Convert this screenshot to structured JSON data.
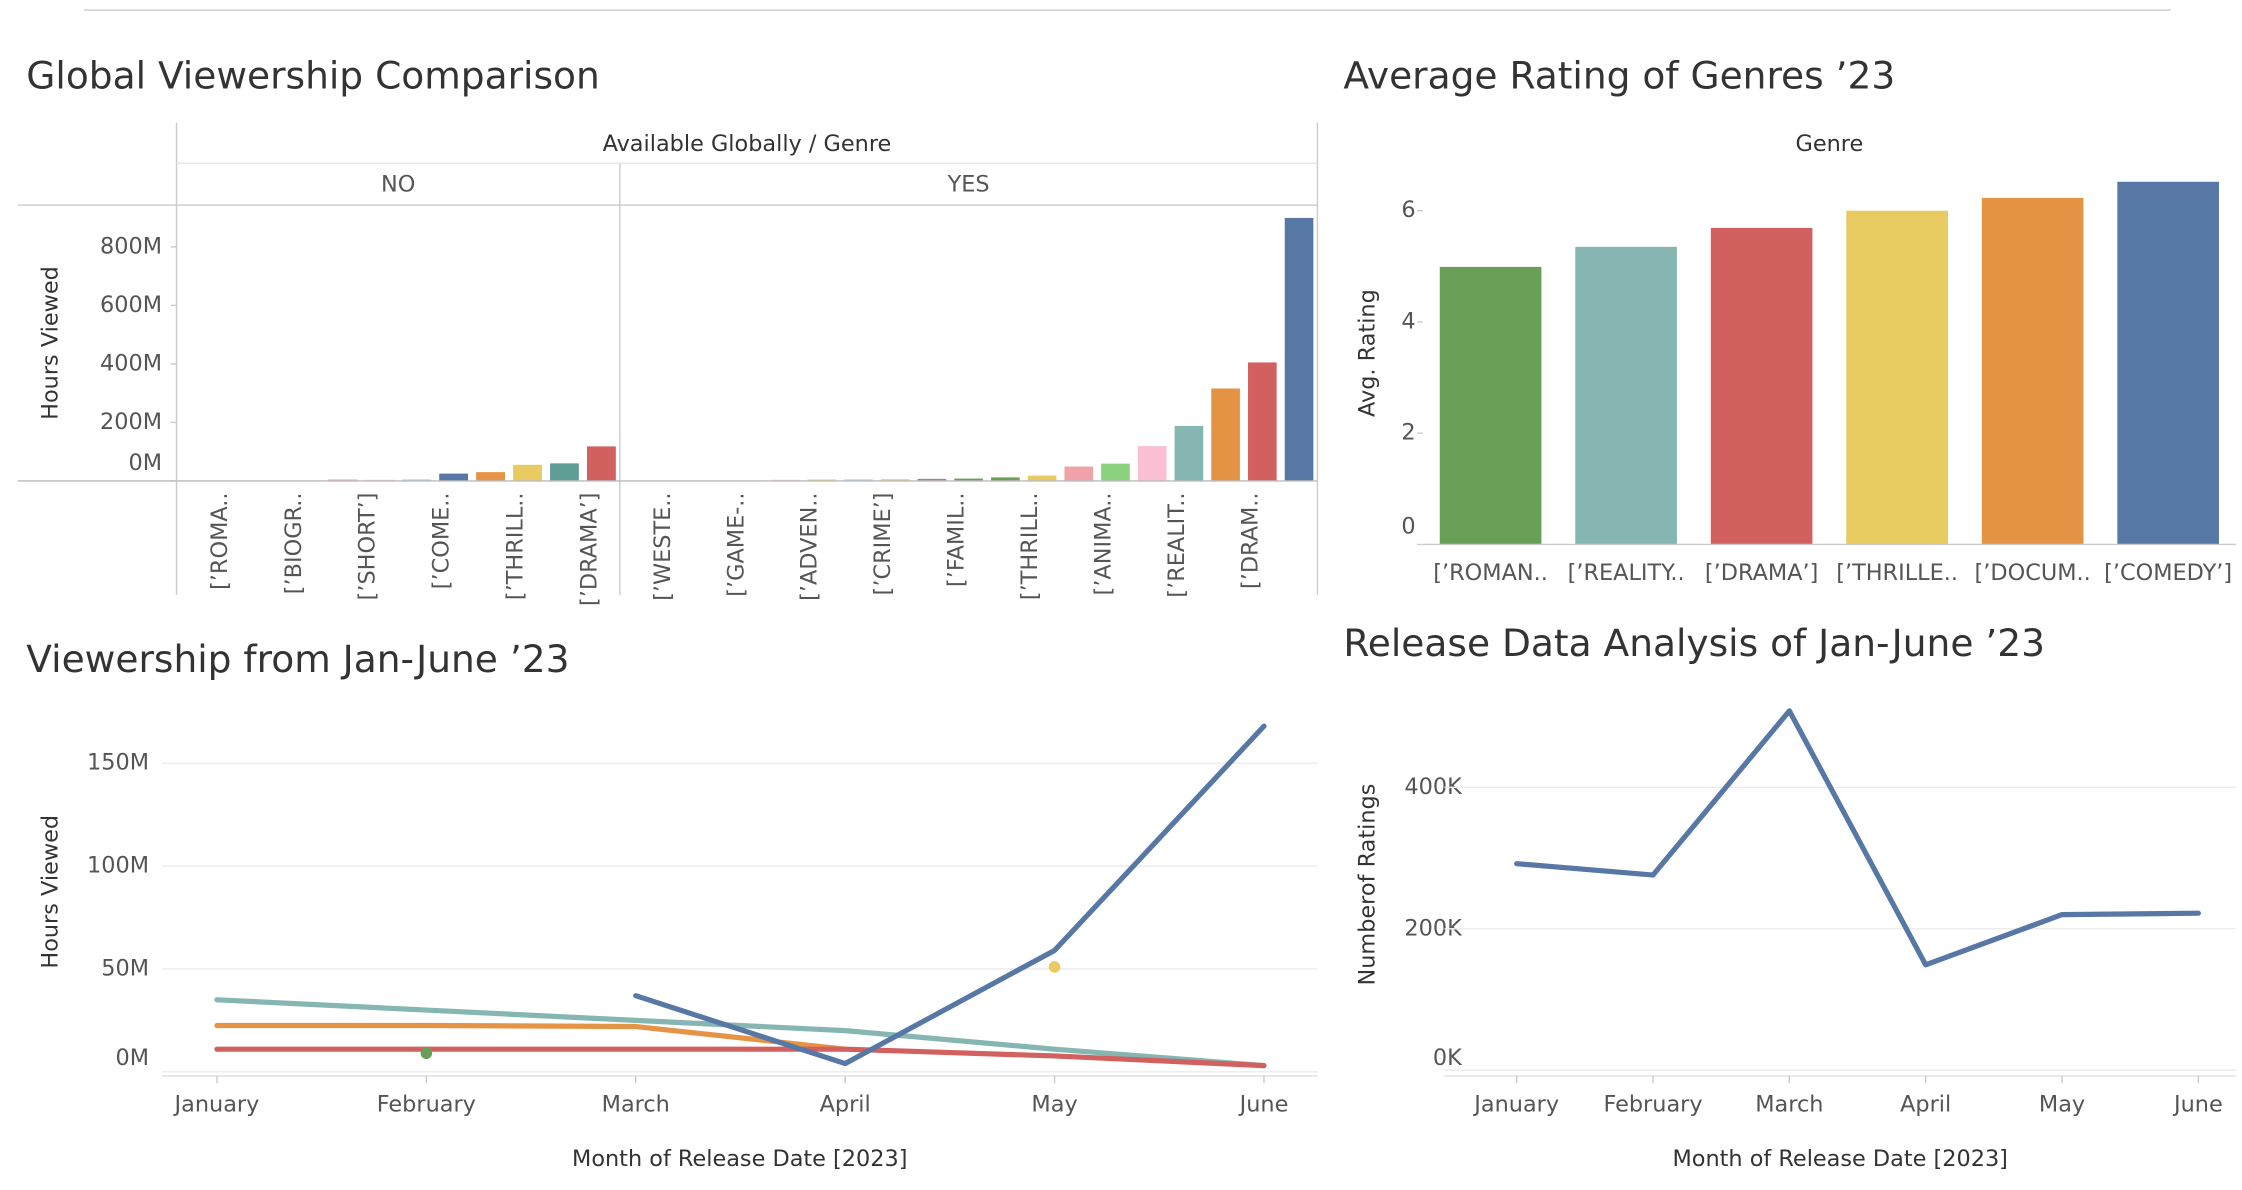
{
  "chart_data": [
    {
      "type": "faceted_bar",
      "title": "Global Viewership Comparison",
      "facet_title": "Available Globally / Genre",
      "ylabel": "Hours Viewed",
      "ylim": [
        0,
        943000000
      ],
      "yticks": [
        {
          "value": 0,
          "label": "0M"
        },
        {
          "value": 200000000,
          "label": "200M"
        },
        {
          "value": 400000000,
          "label": "400M"
        },
        {
          "value": 600000000,
          "label": "600M"
        },
        {
          "value": 800000000,
          "label": "800M"
        }
      ],
      "facets": [
        {
          "label": "NO",
          "categories": [
            null,
            "[’ROMA..",
            null,
            "[’BIOGR..",
            null,
            "[’SHORT’]",
            null,
            "[’COME..",
            null,
            "[’THRILL..",
            null,
            "[’DRAMA’]"
          ],
          "values": [
            0,
            0,
            0,
            0,
            5000000,
            4000000,
            5000000,
            25000000,
            30000000,
            55000000,
            60000000,
            118000000
          ],
          "colors": [
            "#b8b0ac",
            "#b8b0ac",
            "#b8b0ac",
            "#b8b0ac",
            "#f1a2a9",
            "#f4c6d9",
            "#a0cbe8",
            "#5778a4",
            "#e49444",
            "#e7ca60",
            "#5f9e95",
            "#d1605e"
          ]
        },
        {
          "label": "YES",
          "categories": [
            null,
            "[’WESTE..",
            null,
            "[’GAME-..",
            null,
            "[’ADVEN..",
            null,
            "[’CRIME’]",
            null,
            "[’FAMIL..",
            null,
            "[’THRILL..",
            null,
            "[’ANIMA..",
            null,
            "[’REALIT..",
            null,
            "[’DRAM..",
            null
          ],
          "values": [
            0,
            0,
            0,
            0,
            4000000,
            5000000,
            5000000,
            6000000,
            7000000,
            8000000,
            12000000,
            18000000,
            49000000,
            59000000,
            119000000,
            188000000,
            316000000,
            405000000,
            899000000
          ],
          "colors": [
            "#b8b0ac",
            "#b8b0ac",
            "#b8b0ac",
            "#b8b0ac",
            "#f4c6d9",
            "#f1ce63",
            "#a0cbe8",
            "#f1ce63",
            "#a87c9f",
            "#6a9f58",
            "#6a9f58",
            "#e7ca60",
            "#f1a2a9",
            "#8cd17d",
            "#fabfd2",
            "#85b6b2",
            "#e49444",
            "#d1605e",
            "#5778a4"
          ]
        }
      ]
    },
    {
      "type": "bar",
      "title": "Average Rating of Genres ’23",
      "xlabel": "Genre",
      "ylabel": "Avg. Rating",
      "categories": [
        "[’ROMAN..",
        "[’REALITY..",
        "[’DRAMA’]",
        "[’THRILLE..",
        "[’DOCUM..",
        "[’COMEDY’]"
      ],
      "values": [
        4.99,
        5.35,
        5.69,
        6.0,
        6.23,
        6.52
      ],
      "colors": [
        "#6a9f58",
        "#85b6b2",
        "#d1605e",
        "#e7ca60",
        "#e49444",
        "#5778a4"
      ],
      "ylim": [
        0,
        6.88
      ],
      "yticks": [
        0,
        2,
        4,
        6
      ],
      "grid": false
    },
    {
      "type": "line",
      "title": "Viewership from Jan-June ’23",
      "xlabel": "Month of Release Date [2023]",
      "ylabel": "Hours Viewed",
      "categories": [
        "January",
        "February",
        "March",
        "April",
        "May",
        "June"
      ],
      "series": [
        {
          "color": "#85b6b2",
          "values": [
            35000000,
            30000000,
            25000000,
            20000000,
            11000000,
            3000000
          ]
        },
        {
          "color": "#e49444",
          "values": [
            22500000,
            22500000,
            22000000,
            11000000,
            null,
            null
          ]
        },
        {
          "color": "#d1605e",
          "values": [
            11000000,
            11000000,
            11000000,
            11000000,
            7700000,
            3000000
          ]
        },
        {
          "color": "#5778a4",
          "values": [
            null,
            null,
            37000000,
            4000000,
            59000000,
            168000000
          ]
        },
        {
          "color": "#6a9f58",
          "values": [
            null,
            9000000,
            null,
            null,
            null,
            null
          ]
        },
        {
          "color": "#e7ca60",
          "values": [
            null,
            null,
            null,
            null,
            51000000,
            null
          ]
        }
      ],
      "ylim": [
        -2000000,
        177000000
      ],
      "yticks": [
        {
          "value": 0,
          "label": "0M"
        },
        {
          "value": 50000000,
          "label": "50M"
        },
        {
          "value": 100000000,
          "label": "100M"
        },
        {
          "value": 150000000,
          "label": "150M"
        }
      ],
      "grid": true
    },
    {
      "type": "line",
      "title": "Release Data Analysis of Jan-June ’23",
      "xlabel": "Month of Release Date [2023]",
      "ylabel": "Numberof Ratings",
      "categories": [
        "January",
        "February",
        "March",
        "April",
        "May",
        "June"
      ],
      "series": [
        {
          "color": "#5778a4",
          "values": [
            292000,
            276000,
            508000,
            149000,
            220000,
            222000
          ]
        }
      ],
      "ylim": [
        -8000,
        533000
      ],
      "yticks": [
        {
          "value": 0,
          "label": "0K"
        },
        {
          "value": 200000,
          "label": "200K"
        },
        {
          "value": 400000,
          "label": "400K"
        }
      ],
      "grid": true
    }
  ]
}
